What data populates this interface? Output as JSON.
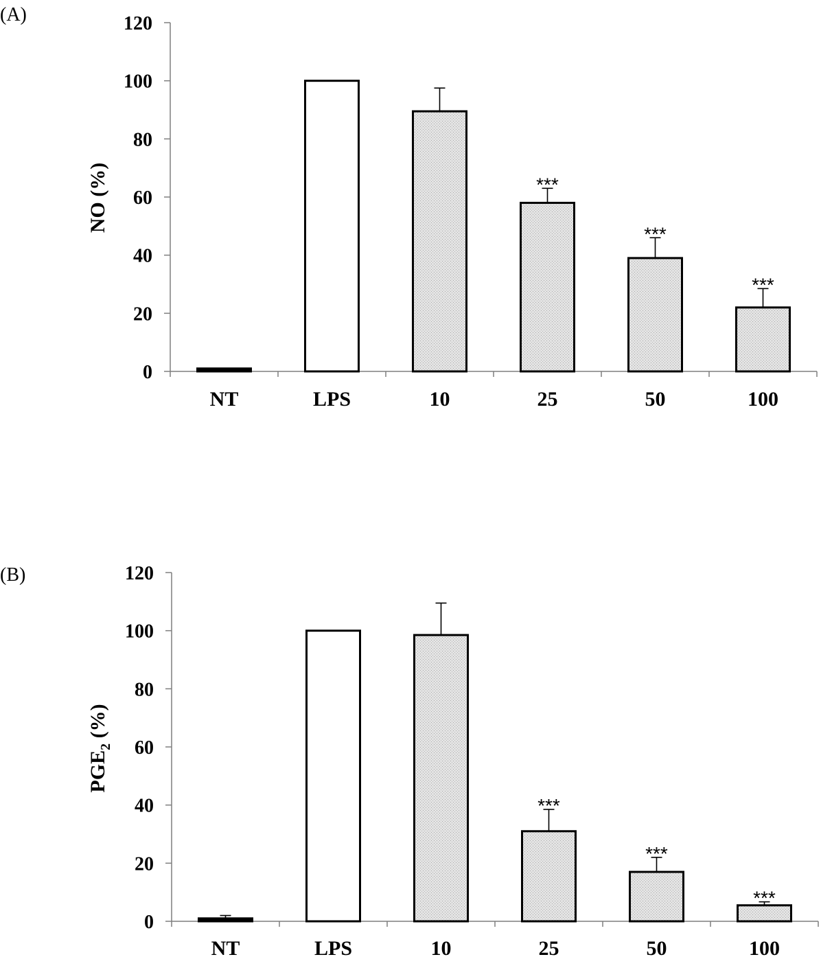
{
  "chart_data": [
    {
      "type": "bar",
      "panel_label": "(A)",
      "ylabel": "NO (%)",
      "ylim": [
        0,
        120
      ],
      "yticks": [
        "0",
        "20",
        "40",
        "60",
        "80",
        "100",
        "120"
      ],
      "categories": [
        "NT",
        "LPS",
        "10",
        "25",
        "50",
        "100"
      ],
      "values": [
        1,
        100,
        89.5,
        58,
        39,
        22
      ],
      "errors": [
        0,
        0,
        8,
        5,
        7,
        6.5
      ],
      "significance": [
        "",
        "",
        "",
        "***",
        "***",
        "***"
      ],
      "bar_fill": [
        "#000000",
        "#ffffff",
        "#d9d9d9",
        "#d9d9d9",
        "#d9d9d9",
        "#d9d9d9"
      ],
      "grid": false
    },
    {
      "type": "bar",
      "panel_label": "(B)",
      "ylabel": "PGE",
      "ylabel_subscript": "2",
      "ylabel_suffix": " (%)",
      "ylim": [
        0,
        120
      ],
      "yticks": [
        "0",
        "20",
        "40",
        "60",
        "80",
        "100",
        "120"
      ],
      "categories": [
        "NT",
        "LPS",
        "10",
        "25",
        "50",
        "100"
      ],
      "values": [
        1,
        100,
        98.5,
        31,
        17,
        5.5
      ],
      "errors": [
        1,
        0,
        11,
        7.5,
        5,
        1.2
      ],
      "significance": [
        "",
        "",
        "",
        "***",
        "***",
        "***"
      ],
      "bar_fill": [
        "#000000",
        "#ffffff",
        "#d9d9d9",
        "#d9d9d9",
        "#d9d9d9",
        "#d9d9d9"
      ],
      "grid": false
    }
  ]
}
